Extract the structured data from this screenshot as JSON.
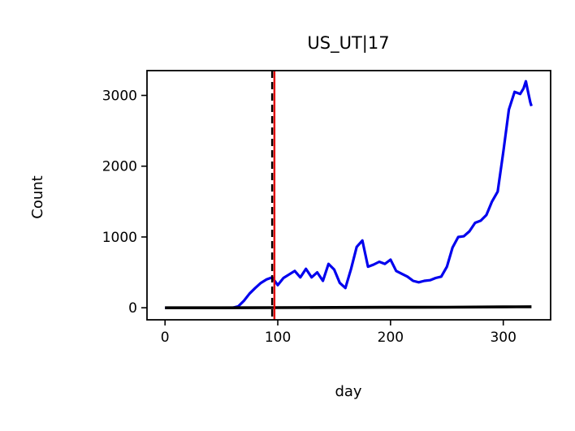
{
  "chart_data": {
    "type": "line",
    "title": "US_UT|17",
    "xlabel": "day",
    "ylabel": "Count",
    "xlim": [
      -16,
      342
    ],
    "ylim": [
      -170,
      3350
    ],
    "xticks": [
      0,
      100,
      200,
      300
    ],
    "yticks": [
      0,
      1000,
      2000,
      3000
    ],
    "vlines": [
      {
        "x": 95,
        "style": "dashed",
        "color": "#000000"
      },
      {
        "x": 97,
        "style": "solid",
        "color": "#e00000"
      }
    ],
    "series": [
      {
        "color": "#0000ee",
        "x": [
          0,
          20,
          40,
          60,
          65,
          70,
          75,
          80,
          85,
          90,
          95,
          100,
          105,
          110,
          115,
          120,
          125,
          130,
          135,
          140,
          145,
          150,
          155,
          160,
          165,
          170,
          175,
          180,
          185,
          190,
          195,
          200,
          205,
          210,
          215,
          220,
          225,
          230,
          235,
          240,
          245,
          250,
          255,
          260,
          265,
          270,
          275,
          280,
          285,
          290,
          295,
          300,
          305,
          310,
          315,
          318,
          320,
          322,
          324,
          325
        ],
        "y": [
          0,
          0,
          0,
          0,
          20,
          100,
          200,
          280,
          350,
          400,
          430,
          320,
          420,
          470,
          520,
          430,
          550,
          430,
          500,
          380,
          620,
          540,
          350,
          280,
          550,
          860,
          950,
          580,
          610,
          650,
          620,
          680,
          520,
          480,
          440,
          380,
          360,
          380,
          390,
          420,
          440,
          580,
          850,
          1000,
          1010,
          1080,
          1200,
          1230,
          1310,
          1500,
          1640,
          2200,
          2800,
          3050,
          3020,
          3100,
          3200,
          3050,
          2900,
          2850
        ]
      },
      {
        "color": "#000000",
        "x": [
          0,
          50,
          100,
          150,
          200,
          250,
          300,
          325
        ],
        "y": [
          0,
          0,
          2,
          4,
          6,
          8,
          12,
          15
        ]
      }
    ]
  }
}
